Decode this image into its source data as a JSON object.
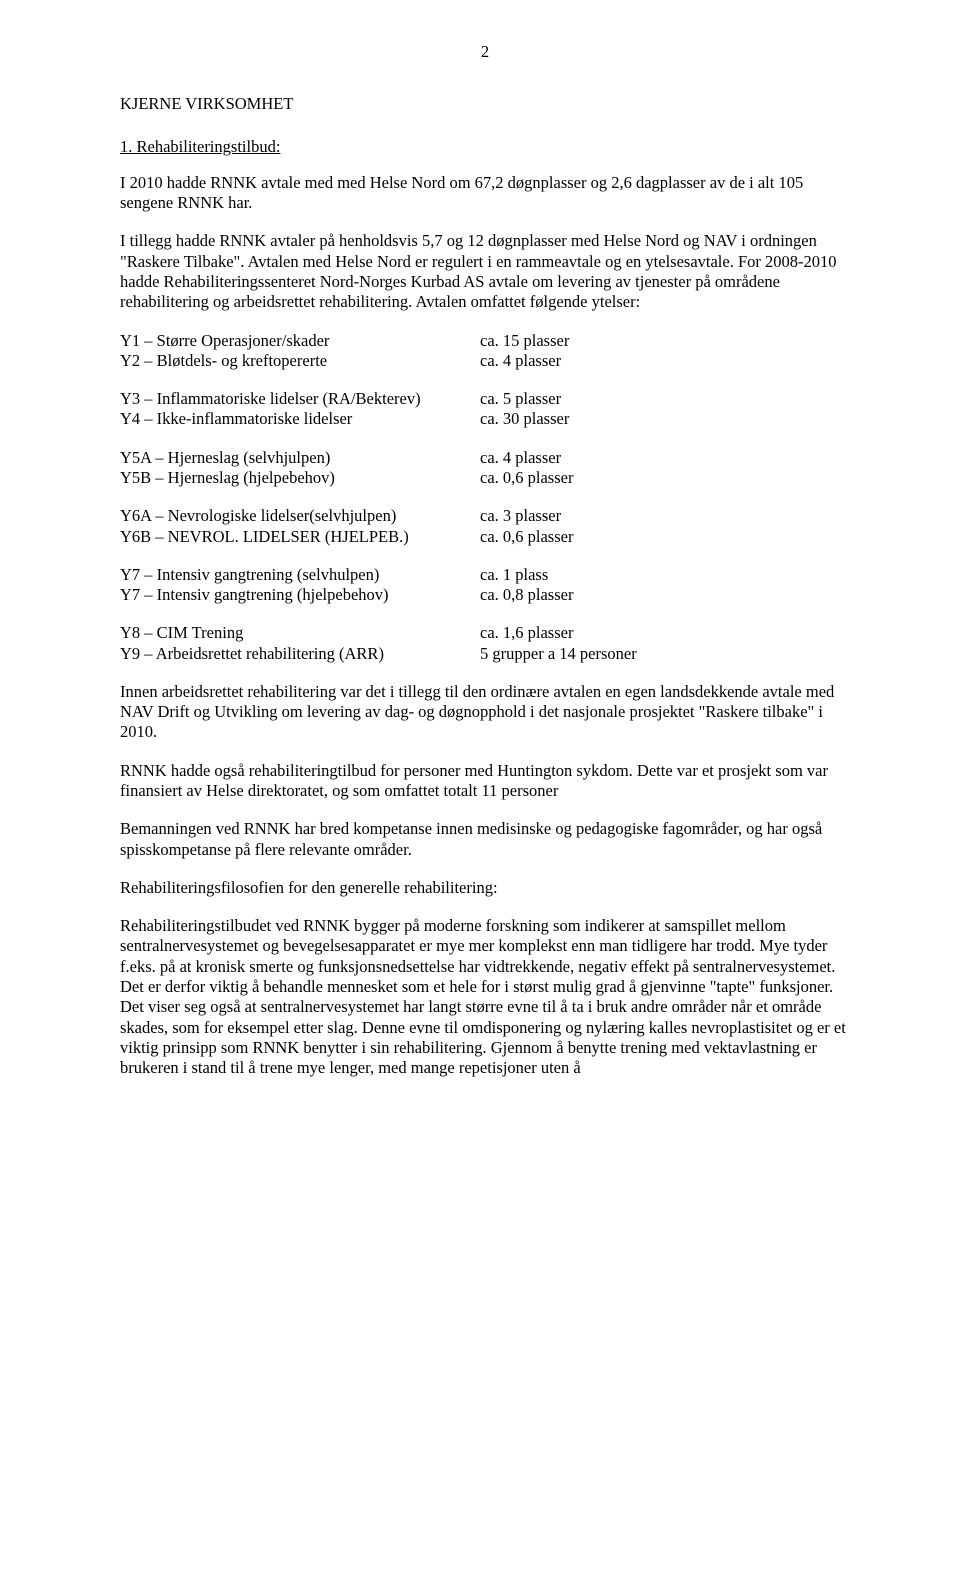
{
  "page_number": "2",
  "heading": "KJERNE VIRKSOMHET",
  "section1_title": "1.    Rehabiliteringstilbud:",
  "intro_p1": "I 2010 hadde RNNK avtale med med Helse Nord om 67,2 døgnplasser og 2,6 dagplasser av de i alt 105 sengene RNNK  har.",
  "intro_p2": "I tillegg hadde RNNK avtaler på henholdsvis 5,7 og 12 døgnplasser med Helse Nord og NAV i ordningen \"Raskere Tilbake\". Avtalen med Helse Nord er regulert i en rammeavtale og en ytelsesavtale. For 2008-2010 hadde Rehabiliteringssenteret Nord-Norges Kurbad AS avtale om levering av tjenester på områdene rehabilitering og arbeidsrettet rehabilitering. Avtalen omfattet følgende ytelser:",
  "ytelser": {
    "g1": [
      {
        "label": "Y1 – Større Operasjoner/skader",
        "value": "ca. 15 plasser"
      },
      {
        "label": "Y2 – Bløtdels- og kreftopererte",
        "value": "ca.   4 plasser"
      }
    ],
    "g2": [
      {
        "label": "Y3 – Inflammatoriske lidelser (RA/Bekterev)",
        "value": "ca.   5 plasser"
      },
      {
        "label": "Y4 – Ikke-inflammatoriske lidelser",
        "value": "ca. 30 plasser"
      }
    ],
    "g3": [
      {
        "label": "Y5A – Hjerneslag (selvhjulpen)",
        "value": "ca.   4 plasser"
      },
      {
        "label": "Y5B – Hjerneslag (hjelpebehov)",
        "value": "ca.  0,6 plasser"
      }
    ],
    "g4": [
      {
        "label": "Y6A – Nevrologiske lidelser(selvhjulpen)",
        "value": "ca.    3 plasser"
      },
      {
        "label": "Y6B – NEVROL. LIDELSER (HJELPEB.)",
        "value": "ca.  0,6 plasser"
      }
    ],
    "g5": [
      {
        "label": "Y7 – Intensiv gangtrening (selvhulpen)",
        "value": "ca.    1 plass"
      },
      {
        "label": "Y7 – Intensiv gangtrening (hjelpebehov)",
        "value": "ca.   0,8 plasser"
      }
    ],
    "g6": [
      {
        "label": "Y8 – CIM Trening",
        "value": "ca.   1,6 plasser"
      },
      {
        "label": "Y9 – Arbeidsrettet rehabilitering (ARR)",
        "value": "5 grupper a 14 personer"
      }
    ]
  },
  "body_p1": "Innen arbeidsrettet rehabilitering var det i tillegg til den ordinære avtalen en egen landsdekkende avtale med NAV Drift og Utvikling om levering av dag- og døgnopphold i det nasjonale prosjektet \"Raskere tilbake\" i 2010.",
  "body_p2": "RNNK hadde også rehabiliteringtilbud for personer med Huntington sykdom.  Dette var et prosjekt som var finansiert av Helse direktoratet, og som omfattet totalt 11 personer",
  "body_p3": "Bemanningen ved RNNK har bred kompetanse innen medisinske og pedagogiske fagområder, og har også spisskompetanse på flere relevante områder.",
  "philosophy_heading": "Rehabiliteringsfilosofien for den generelle rehabilitering:",
  "philosophy_body": "Rehabiliteringstilbudet ved RNNK bygger på moderne forskning som indikerer at samspillet mellom sentralnervesystemet og bevegelsesapparatet er mye mer komplekst enn man tidligere har trodd. Mye tyder f.eks. på at kronisk smerte og funksjonsnedsettelse har vidtrekkende, negativ effekt på sentralnervesystemet. Det er derfor viktig å behandle mennesket som et hele for i størst mulig grad å gjenvinne \"tapte\" funksjoner.  Det viser seg også at sentralnervesystemet har langt større evne til å ta i bruk andre områder når et område skades, som for eksempel etter slag. Denne evne til omdisponering og nylæring kalles nevroplastisitet og er et viktig prinsipp som RNNK benytter i sin rehabilitering. Gjennom å benytte trening med vektavlastning er brukeren i stand til å trene mye lenger, med mange repetisjoner uten å"
}
